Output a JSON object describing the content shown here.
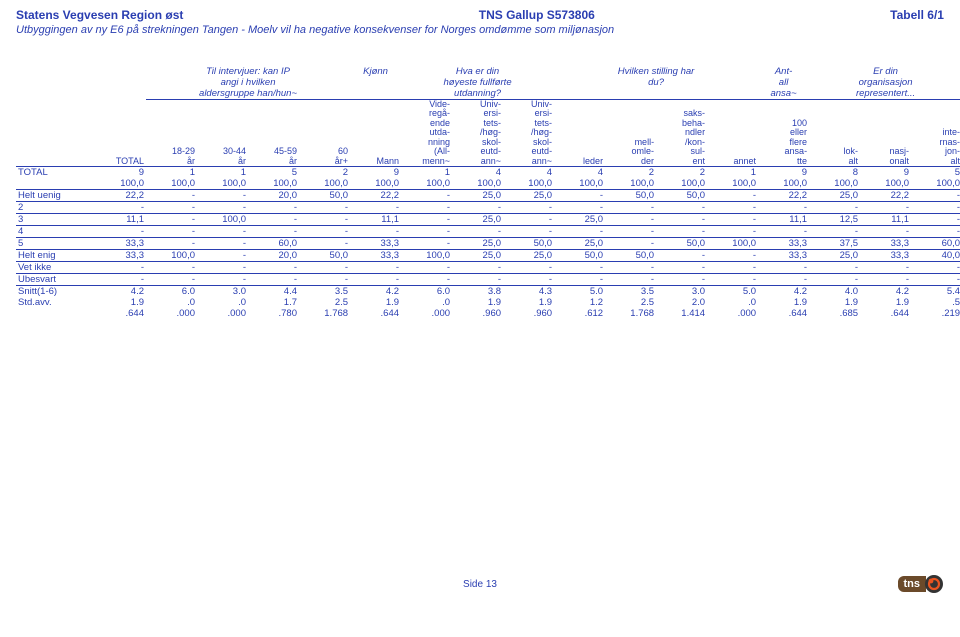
{
  "header": {
    "left": "Statens Vegvesen Region øst",
    "center": "TNS Gallup S573806",
    "right": "Tabell 6/1",
    "sub": "Utbyggingen av ny E6 på strekningen Tangen - Moelv vil ha negative konsekvenser for Norges omdømme som miljønasjon"
  },
  "groups": {
    "g0": "TOTAL",
    "g1a": "Til intervjuer: kan IP",
    "g1b": "angi i hvilken",
    "g1c": "aldersgruppe han/hun~",
    "g2": "Kjønn",
    "g3a": "Hva er din",
    "g3b": "høyeste fullførte",
    "g3c": "utdanning?",
    "g4a": "Hvilken stilling har",
    "g4b": "du?",
    "g5a": "Ant-",
    "g5b": "all",
    "g5c": "ansa~",
    "g6a": "Er din",
    "g6b": "organisasjon",
    "g6c": "representert..."
  },
  "cols": {
    "c1": "18-29\når",
    "c2": "30-44\når",
    "c3": "45-59\når",
    "c4": "60\når+",
    "c5": "Mann",
    "c6": "Vide-\nregå-\nende\nutda-\nnning\n(All-\nmenn~",
    "c7": "Univ-\nersi-\ntets-\n/høg-\nskol-\neutd-\nann~",
    "c8": "Univ-\nersi-\ntets-\n/høg-\nskol-\neutd-\nann~",
    "c9": "leder",
    "c10": "mell-\nomle-\nder",
    "c11": "saks-\nbeha-\nndler\n/kon-\nsul-\nent",
    "c12": "annet",
    "c13": "100\neller\nflere\nansa-\ntte",
    "c14": "lok-\nalt",
    "c15": "nasj-\nonalt",
    "c16": "inte-\nrnas-\njon-\nalt"
  },
  "rows": [
    {
      "label": "TOTAL",
      "r1": [
        "9",
        "1",
        "1",
        "5",
        "2",
        "9",
        "1",
        "4",
        "4",
        "4",
        "2",
        "2",
        "1",
        "9",
        "8",
        "9",
        "5"
      ],
      "r2": [
        "100,0",
        "100,0",
        "100,0",
        "100,0",
        "100,0",
        "100,0",
        "100,0",
        "100,0",
        "100,0",
        "100,0",
        "100,0",
        "100,0",
        "100,0",
        "100,0",
        "100,0",
        "100,0",
        "100,0"
      ]
    },
    {
      "label": "Helt uenig",
      "r1": [
        "22,2",
        "-",
        "-",
        "20,0",
        "50,0",
        "22,2",
        "-",
        "25,0",
        "25,0",
        "-",
        "50,0",
        "50,0",
        "-",
        "22,2",
        "25,0",
        "22,2",
        "-"
      ]
    },
    {
      "label": "2",
      "r1": [
        "-",
        "-",
        "-",
        "-",
        "-",
        "-",
        "-",
        "-",
        "-",
        "-",
        "-",
        "-",
        "-",
        "-",
        "-",
        "-",
        "-"
      ]
    },
    {
      "label": "3",
      "r1": [
        "11,1",
        "-",
        "100,0",
        "-",
        "-",
        "11,1",
        "-",
        "25,0",
        "-",
        "25,0",
        "-",
        "-",
        "-",
        "11,1",
        "12,5",
        "11,1",
        "-"
      ]
    },
    {
      "label": "4",
      "r1": [
        "-",
        "-",
        "-",
        "-",
        "-",
        "-",
        "-",
        "-",
        "-",
        "-",
        "-",
        "-",
        "-",
        "-",
        "-",
        "-",
        "-"
      ]
    },
    {
      "label": "5",
      "r1": [
        "33,3",
        "-",
        "-",
        "60,0",
        "-",
        "33,3",
        "-",
        "25,0",
        "50,0",
        "25,0",
        "-",
        "50,0",
        "100,0",
        "33,3",
        "37,5",
        "33,3",
        "60,0"
      ]
    },
    {
      "label": "Helt enig",
      "r1": [
        "33,3",
        "100,0",
        "-",
        "20,0",
        "50,0",
        "33,3",
        "100,0",
        "25,0",
        "25,0",
        "50,0",
        "50,0",
        "-",
        "-",
        "33,3",
        "25,0",
        "33,3",
        "40,0"
      ]
    },
    {
      "label": "Vet ikke",
      "r1": [
        "-",
        "-",
        "-",
        "-",
        "-",
        "-",
        "-",
        "-",
        "-",
        "-",
        "-",
        "-",
        "-",
        "-",
        "-",
        "-",
        "-"
      ]
    },
    {
      "label": "Ubesvart",
      "r1": [
        "-",
        "-",
        "-",
        "-",
        "-",
        "-",
        "-",
        "-",
        "-",
        "-",
        "-",
        "-",
        "-",
        "-",
        "-",
        "-",
        "-"
      ]
    }
  ],
  "stats": {
    "snitt_label": "Snitt(1-6)",
    "std_label": "Std.avv.",
    "snitt": [
      "4.2",
      "6.0",
      "3.0",
      "4.4",
      "3.5",
      "4.2",
      "6.0",
      "3.8",
      "4.3",
      "5.0",
      "3.5",
      "3.0",
      "5.0",
      "4.2",
      "4.0",
      "4.2",
      "5.4"
    ],
    "std": [
      "1.9",
      ".0",
      ".0",
      "1.7",
      "2.5",
      "1.9",
      ".0",
      "1.9",
      "1.9",
      "1.2",
      "2.5",
      "2.0",
      ".0",
      "1.9",
      "1.9",
      "1.9",
      ".5"
    ],
    "third": [
      ".644",
      ".000",
      ".000",
      ".780",
      "1.768",
      ".644",
      ".000",
      ".960",
      ".960",
      ".612",
      "1.768",
      "1.414",
      ".000",
      ".644",
      ".685",
      ".644",
      ".219"
    ]
  },
  "footer": {
    "page": "Side 13",
    "logo": "tns"
  }
}
